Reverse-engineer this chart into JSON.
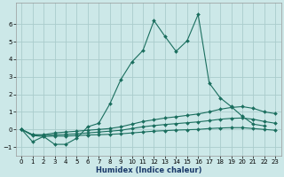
{
  "xlabel": "Humidex (Indice chaleur)",
  "background_color": "#cce8e8",
  "grid_color": "#aacccc",
  "line_color": "#1a6e5e",
  "xlim": [
    -0.5,
    23.5
  ],
  "ylim": [
    -1.5,
    7.2
  ],
  "yticks": [
    -1,
    0,
    1,
    2,
    3,
    4,
    5,
    6
  ],
  "xticks": [
    0,
    1,
    2,
    3,
    4,
    5,
    6,
    7,
    8,
    9,
    10,
    11,
    12,
    13,
    14,
    15,
    16,
    17,
    18,
    19,
    20,
    21,
    22,
    23
  ],
  "series": [
    {
      "x": [
        0,
        1,
        2,
        3,
        4,
        5,
        6,
        7,
        8,
        9,
        10,
        11,
        12,
        13,
        14,
        15,
        16,
        17,
        18,
        19,
        20,
        21,
        22
      ],
      "y": [
        0.0,
        -0.7,
        -0.4,
        -0.85,
        -0.85,
        -0.5,
        0.15,
        0.35,
        1.45,
        2.85,
        3.85,
        4.5,
        6.2,
        5.3,
        4.45,
        5.05,
        6.55,
        2.65,
        1.8,
        1.3,
        0.75,
        0.3,
        0.2
      ]
    },
    {
      "x": [
        0,
        1,
        2,
        3,
        4,
        5,
        6,
        7,
        8,
        9,
        10,
        11,
        12,
        13,
        14,
        15,
        16,
        17,
        18,
        19,
        20,
        21,
        22,
        23
      ],
      "y": [
        0.0,
        -0.3,
        -0.3,
        -0.2,
        -0.15,
        -0.1,
        -0.05,
        0.0,
        0.05,
        0.15,
        0.3,
        0.45,
        0.55,
        0.65,
        0.72,
        0.8,
        0.88,
        1.0,
        1.15,
        1.25,
        1.3,
        1.2,
        1.0,
        0.9
      ]
    },
    {
      "x": [
        0,
        1,
        2,
        3,
        4,
        5,
        6,
        7,
        8,
        9,
        10,
        11,
        12,
        13,
        14,
        15,
        16,
        17,
        18,
        19,
        20,
        21,
        22,
        23
      ],
      "y": [
        0.0,
        -0.3,
        -0.35,
        -0.3,
        -0.28,
        -0.25,
        -0.2,
        -0.15,
        -0.1,
        -0.05,
        0.05,
        0.15,
        0.22,
        0.28,
        0.33,
        0.38,
        0.43,
        0.5,
        0.58,
        0.63,
        0.65,
        0.58,
        0.45,
        0.35
      ]
    },
    {
      "x": [
        0,
        1,
        2,
        3,
        4,
        5,
        6,
        7,
        8,
        9,
        10,
        11,
        12,
        13,
        14,
        15,
        16,
        17,
        18,
        19,
        20,
        21,
        22,
        23
      ],
      "y": [
        0.0,
        -0.35,
        -0.4,
        -0.38,
        -0.38,
        -0.35,
        -0.32,
        -0.3,
        -0.28,
        -0.25,
        -0.2,
        -0.15,
        -0.1,
        -0.07,
        -0.04,
        -0.02,
        0.0,
        0.05,
        0.08,
        0.1,
        0.1,
        0.05,
        0.0,
        -0.05
      ]
    }
  ]
}
